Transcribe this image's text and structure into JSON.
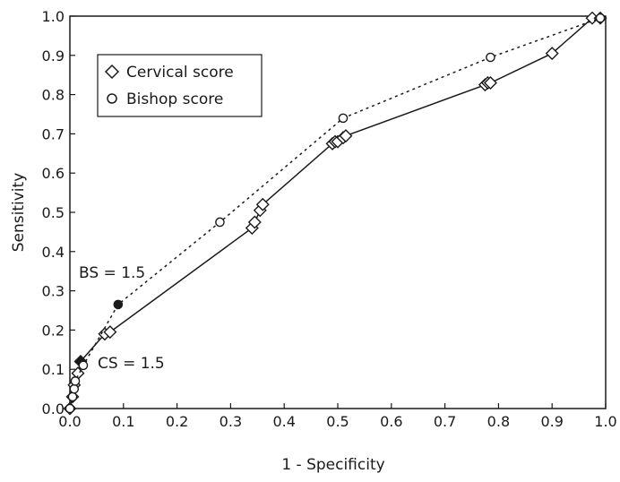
{
  "chart_data": {
    "type": "line",
    "xlabel": "1 - Specificity",
    "ylabel": "Sensitivity",
    "xlim": [
      0.0,
      1.0
    ],
    "ylim": [
      0.0,
      1.0
    ],
    "xticks": [
      "0.0",
      "0.1",
      "0.2",
      "0.3",
      "0.4",
      "0.5",
      "0.6",
      "0.7",
      "0.8",
      "0.9",
      "1.0"
    ],
    "yticks": [
      "0.0",
      "0.1",
      "0.2",
      "0.3",
      "0.4",
      "0.5",
      "0.6",
      "0.7",
      "0.8",
      "0.9",
      "1.0"
    ],
    "grid": false,
    "legend_position": "top-left",
    "series": [
      {
        "name": "Cervical score",
        "marker": "diamond",
        "line": "solid",
        "points": [
          [
            0.0,
            0.0
          ],
          [
            0.005,
            0.03
          ],
          [
            0.008,
            0.06
          ],
          [
            0.015,
            0.09
          ],
          [
            0.02,
            0.12
          ],
          [
            0.065,
            0.19
          ],
          [
            0.075,
            0.195
          ],
          [
            0.34,
            0.46
          ],
          [
            0.345,
            0.475
          ],
          [
            0.355,
            0.505
          ],
          [
            0.36,
            0.52
          ],
          [
            0.49,
            0.675
          ],
          [
            0.495,
            0.68
          ],
          [
            0.5,
            0.68
          ],
          [
            0.51,
            0.69
          ],
          [
            0.515,
            0.695
          ],
          [
            0.775,
            0.825
          ],
          [
            0.78,
            0.83
          ],
          [
            0.785,
            0.83
          ],
          [
            0.9,
            0.905
          ],
          [
            0.975,
            0.995
          ],
          [
            0.99,
            0.995
          ]
        ],
        "highlight_point": [
          0.02,
          0.12
        ],
        "annotation": "CS = 1.5"
      },
      {
        "name": "Bishop score",
        "marker": "circle",
        "line": "dotted",
        "points": [
          [
            0.0,
            0.0
          ],
          [
            0.005,
            0.03
          ],
          [
            0.008,
            0.05
          ],
          [
            0.01,
            0.07
          ],
          [
            0.025,
            0.11
          ],
          [
            0.09,
            0.265
          ],
          [
            0.28,
            0.475
          ],
          [
            0.51,
            0.74
          ],
          [
            0.785,
            0.895
          ],
          [
            0.99,
            0.995
          ]
        ],
        "highlight_point": [
          0.09,
          0.265
        ],
        "annotation": "BS = 1.5"
      }
    ]
  }
}
